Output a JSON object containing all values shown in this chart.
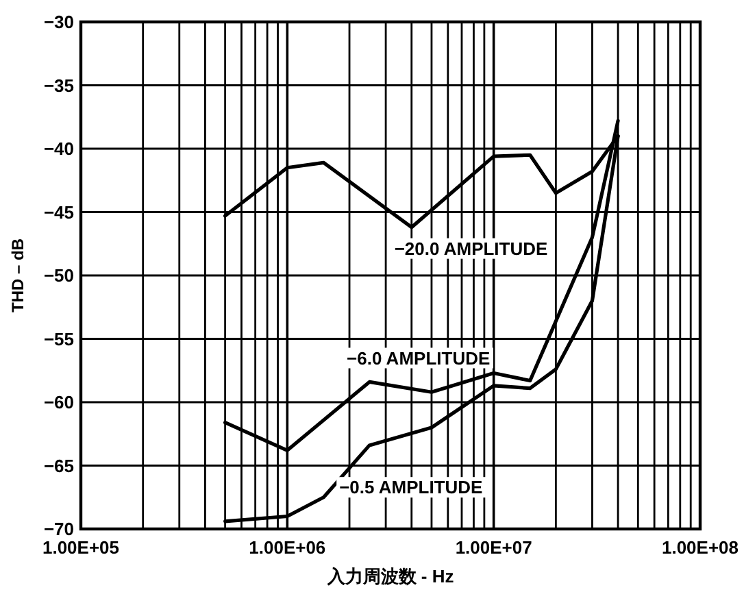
{
  "chart_data": {
    "type": "line",
    "xlabel": "入力周波数 - Hz",
    "ylabel": "THD – dB",
    "log": "x",
    "grid": true,
    "marker": "none",
    "line_style": "solid",
    "xlim": [
      100000,
      100000000
    ],
    "xticks": [
      {
        "value": 100000,
        "label": "1.00E+05"
      },
      {
        "value": 1000000,
        "label": "1.00E+06"
      },
      {
        "value": 10000000,
        "label": "1.00E+07"
      },
      {
        "value": 100000000,
        "label": "1.00E+08"
      }
    ],
    "ylim": [
      -70,
      -30
    ],
    "yticks": [
      {
        "value": -30,
        "label": "−30"
      },
      {
        "value": -35,
        "label": "−35"
      },
      {
        "value": -40,
        "label": "−40"
      },
      {
        "value": -45,
        "label": "−45"
      },
      {
        "value": -50,
        "label": "−50"
      },
      {
        "value": -55,
        "label": "−55"
      },
      {
        "value": -60,
        "label": "−60"
      },
      {
        "value": -65,
        "label": "−65"
      },
      {
        "value": -70,
        "label": "−70"
      }
    ],
    "series": [
      {
        "color": "#000000",
        "x": [
          500000,
          1000000,
          1500000,
          4000000,
          10000000,
          15000000,
          20000000,
          30000000,
          40000000
        ],
        "values": [
          -45.3,
          -41.5,
          -41.1,
          -46.2,
          -40.6,
          -40.5,
          -43.5,
          -41.8,
          -39.0
        ]
      },
      {
        "color": "#000000",
        "x": [
          500000,
          1000000,
          2500000,
          5000000,
          10000000,
          15000000,
          30000000,
          40000000
        ],
        "values": [
          -61.6,
          -63.8,
          -58.4,
          -59.2,
          -57.7,
          -58.3,
          -47.0,
          -37.8
        ]
      },
      {
        "color": "#000000",
        "x": [
          500000,
          1000000,
          1500000,
          2500000,
          5000000,
          10000000,
          15000000,
          20000000,
          30000000,
          40000000
        ],
        "values": [
          -69.4,
          -69.0,
          -67.5,
          -63.4,
          -62.0,
          -58.7,
          -58.9,
          -57.4,
          -52.0,
          -39.0
        ]
      }
    ],
    "annotations": [
      "−20.0 AMPLITUDE",
      "−6.0 AMPLITUDE",
      "−0.5 AMPLITUDE"
    ]
  }
}
